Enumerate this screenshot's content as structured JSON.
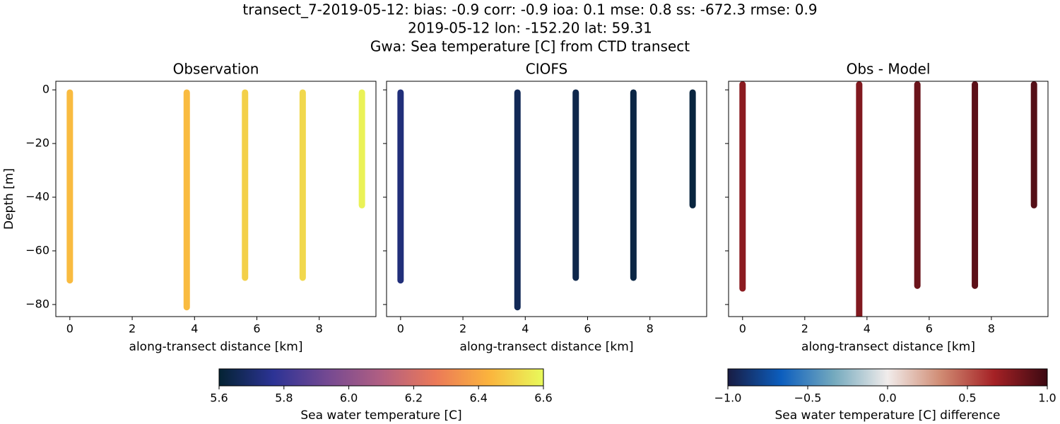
{
  "title": [
    "transect_7-2019-05-12: bias: -0.9  corr: -0.9  ioa: 0.1  mse: 0.8  ss: -672.3  rmse: 0.9",
    "2019-05-12 lon: -152.20 lat: 59.31",
    "Gwa: Sea temperature [C] from CTD transect"
  ],
  "chart_data": [
    {
      "type": "scatter",
      "title": "Observation",
      "x_label": "along-transect distance [km]",
      "y_label": "Depth [m]",
      "x": [
        0,
        3.75,
        5.62,
        7.47,
        9.37
      ],
      "depth_top": [
        -1,
        -1,
        -1,
        -1,
        -1
      ],
      "depth_bottom": [
        -71,
        -81,
        -70,
        -70,
        -43
      ],
      "values": [
        6.45,
        6.45,
        6.5,
        6.52,
        6.58
      ],
      "colorbar": 0,
      "xlim": [
        -0.45,
        9.82
      ],
      "xticks": [
        0,
        2,
        4,
        6,
        8
      ],
      "ylim": [
        -84.5,
        3.2
      ],
      "yticks": [
        0,
        {
          "value": -20,
          "label": "−20"
        },
        {
          "value": -40,
          "label": "−40"
        },
        {
          "value": -60,
          "label": "−60"
        },
        {
          "value": -80,
          "label": "−80"
        }
      ]
    },
    {
      "type": "scatter",
      "title": "CIOFS",
      "x_label": "along-transect distance [km]",
      "x": [
        0,
        3.75,
        5.62,
        7.47,
        9.37
      ],
      "depth_top": [
        -1,
        -1,
        -1,
        -1,
        -1
      ],
      "depth_bottom": [
        -71,
        -81,
        -70,
        -70,
        -43
      ],
      "values": [
        5.72,
        5.66,
        5.64,
        5.63,
        5.62
      ],
      "colorbar": 0,
      "xlim": [
        -0.45,
        9.82
      ],
      "xticks": [
        0,
        2,
        4,
        6,
        8
      ],
      "ylim": [
        -84.5,
        3.2
      ],
      "yticks": [
        0,
        -20,
        -40,
        -60,
        -80
      ],
      "ytick_labels": false
    },
    {
      "type": "scatter",
      "title": "Obs - Model",
      "x_label": "along-transect distance [km]",
      "x": [
        0,
        3.75,
        5.62,
        7.47,
        9.37
      ],
      "depth_top": [
        2,
        2,
        2,
        2,
        2
      ],
      "depth_bottom": [
        -74,
        -85,
        -73,
        -73,
        -43
      ],
      "values": [
        0.75,
        0.78,
        0.85,
        0.9,
        0.92
      ],
      "colorbar": 1,
      "xlim": [
        -0.45,
        9.82
      ],
      "xticks": [
        0,
        2,
        4,
        6,
        8
      ],
      "ylim": [
        -84.5,
        3.2
      ],
      "yticks": [
        0,
        -20,
        -40,
        -60,
        -80
      ],
      "ytick_labels": false
    }
  ],
  "colorbars": [
    {
      "label": "Sea water temperature [C]",
      "lim": [
        5.6,
        6.6
      ],
      "ticks": [
        5.6,
        5.8,
        {
          "value": 6,
          "label": "6.0"
        },
        6.2,
        6.4,
        6.6
      ],
      "colormap": [
        "#042333",
        "#2c3395",
        "#744992",
        "#b15f82",
        "#eb7958",
        "#fbb43d",
        "#e8fa5b"
      ]
    },
    {
      "label": "Sea water temperature [C] difference",
      "lim": [
        -1,
        1
      ],
      "ticks": [
        {
          "value": -1,
          "label": "−1.0"
        },
        {
          "value": -0.5,
          "label": "−0.5"
        },
        {
          "value": 0,
          "label": "0.0"
        },
        0.5,
        {
          "value": 1,
          "label": "1.0"
        }
      ],
      "colormap": [
        "#181c43",
        "#0c5ebe",
        "#75aabe",
        "#f1eceb",
        "#d08b73",
        "#a52125",
        "#3c0912"
      ]
    }
  ]
}
